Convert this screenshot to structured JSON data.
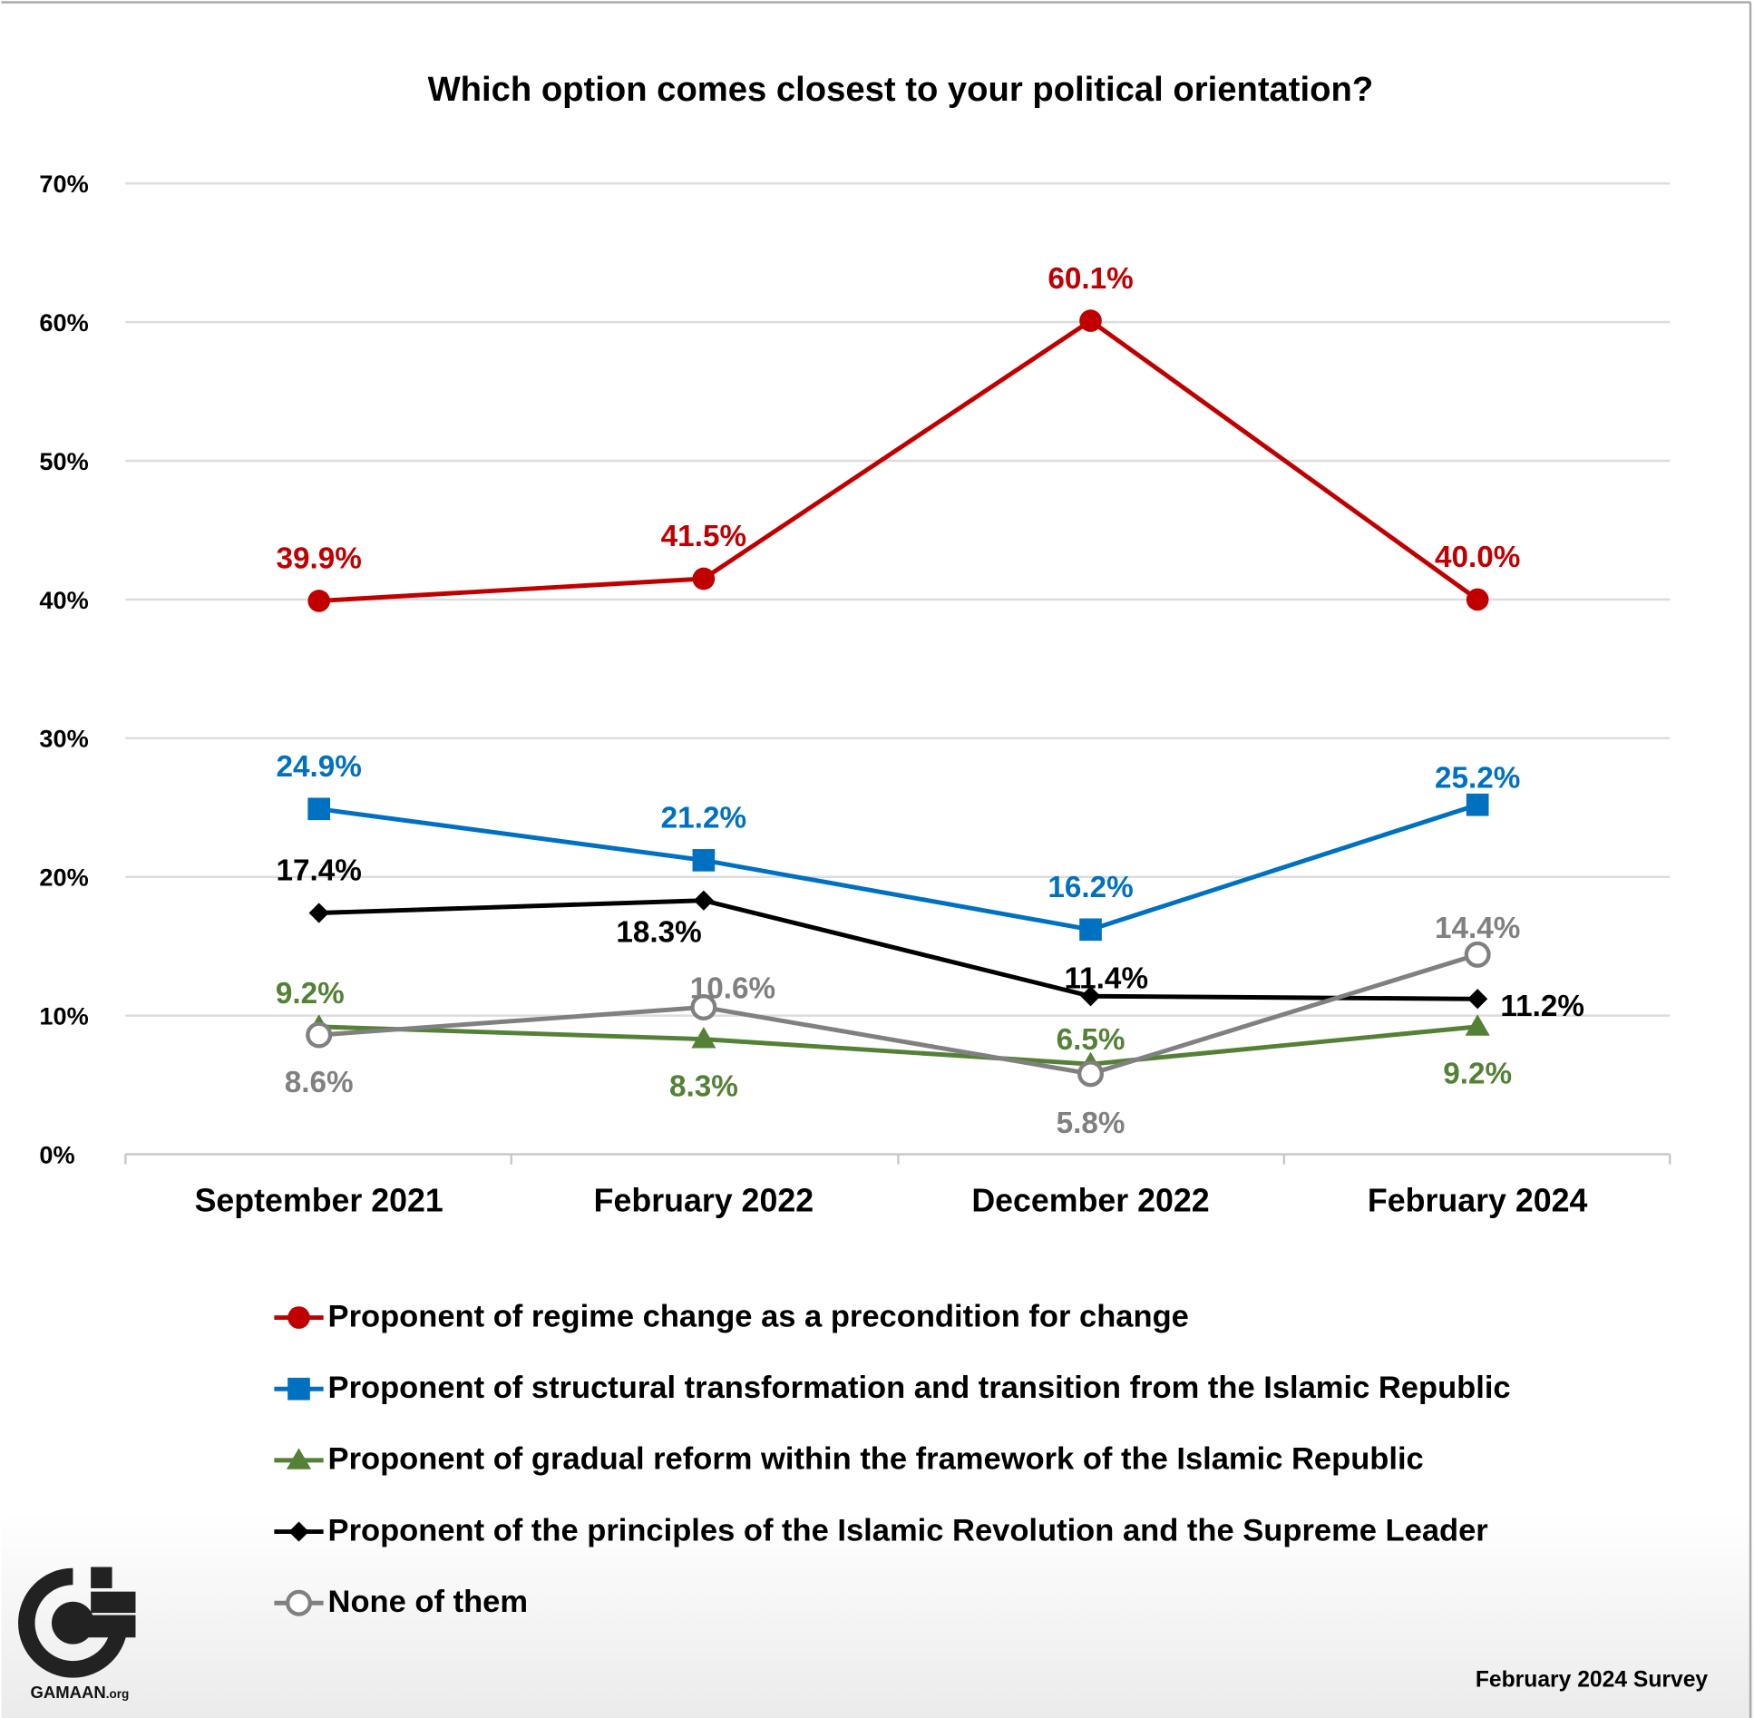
{
  "chart_data": {
    "type": "line",
    "title": "Which option comes closest to your political orientation?",
    "categories": [
      "September 2021",
      "February 2022",
      "December 2022",
      "February 2024"
    ],
    "ylim": [
      0,
      70
    ],
    "yticks": [
      "0%",
      "10%",
      "20%",
      "30%",
      "40%",
      "50%",
      "60%",
      "70%"
    ],
    "grid": true,
    "legend_placement": "bottom",
    "series": [
      {
        "name": "Proponent of regime change as a precondition for change",
        "color": "#C00000",
        "marker": "circle",
        "values": [
          39.9,
          41.5,
          60.1,
          40.0
        ],
        "labels": [
          "39.9%",
          "41.5%",
          "60.1%",
          "40.0%"
        ]
      },
      {
        "name": "Proponent of structural transformation and transition from the Islamic Republic",
        "color": "#0070C0",
        "marker": "square",
        "values": [
          24.9,
          21.2,
          16.2,
          25.2
        ],
        "labels": [
          "24.9%",
          "21.2%",
          "16.2%",
          "25.2%"
        ]
      },
      {
        "name": "Proponent of gradual reform within the framework of the Islamic Republic",
        "color": "#538135",
        "marker": "triangle",
        "values": [
          9.2,
          8.3,
          6.5,
          9.2
        ],
        "labels": [
          "9.2%",
          "8.3%",
          "6.5%",
          "9.2%"
        ]
      },
      {
        "name": "Proponent of the principles of the Islamic Revolution and the Supreme Leader",
        "color": "#000000",
        "marker": "diamond",
        "values": [
          17.4,
          18.3,
          11.4,
          11.2
        ],
        "labels": [
          "17.4%",
          "18.3%",
          "11.4%",
          "11.2%"
        ]
      },
      {
        "name": "None of them",
        "color": "#808080",
        "marker": "open-circle",
        "values": [
          8.6,
          10.6,
          5.8,
          14.4
        ],
        "labels": [
          "8.6%",
          "10.6%",
          "5.8%",
          "14.4%"
        ]
      }
    ]
  },
  "logo": {
    "text": "GAMAAN",
    "suffix": ".org"
  },
  "footer": {
    "survey": "February 2024 Survey"
  }
}
